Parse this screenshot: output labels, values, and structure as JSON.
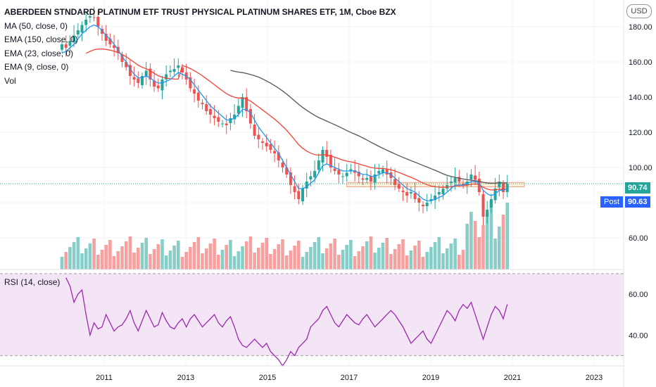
{
  "legend": {
    "title": "ABERDEEN STNDARD PLATINUM ETF TRUST PHYSICAL PLATINUM SHARES ETF, 1M, Cboe BZX",
    "ma50": "MA (50, close, 0)",
    "ema150": "EMA (150, close, 0)",
    "ema23": "EMA (23, close, 0)",
    "ema9": "EMA (9, close, 0)",
    "vol": "Vol"
  },
  "rsi_label": "RSI (14, close)",
  "currency_button": "USD",
  "last_price": "90.74",
  "post_label": "Post",
  "post_price": "90.63",
  "colors": {
    "up": "#26a69a",
    "down": "#ef5350",
    "ema9": "#2196f3",
    "ema23": "#f44336",
    "ma50": "#555555",
    "rsi_line": "#9c27b0",
    "rsi_band": "#f3e5f5"
  },
  "chart_data": [
    {
      "type": "candlestick",
      "x_ticks": [
        "2011",
        "2013",
        "2015",
        "2017",
        "2019",
        "2021",
        "2023"
      ],
      "y_ticks": [
        "60.00",
        "80.00",
        "100.00",
        "120.00",
        "140.00",
        "160.00",
        "180.00"
      ],
      "ylim": [
        42,
        192
      ],
      "xlim": [
        2009.9,
        2024.0
      ],
      "close_series": [
        170,
        168,
        172,
        175,
        178,
        181,
        184,
        186,
        185,
        180,
        176,
        172,
        170,
        168,
        165,
        160,
        157,
        152,
        150,
        148,
        152,
        155,
        150,
        146,
        145,
        150,
        153,
        155,
        156,
        158,
        154,
        150,
        145,
        142,
        138,
        136,
        132,
        130,
        128,
        126,
        125,
        124,
        128,
        130,
        135,
        140,
        132,
        125,
        118,
        116,
        114,
        112,
        110,
        108,
        104,
        100,
        96,
        90,
        86,
        82,
        88,
        92,
        95,
        98,
        104,
        110,
        106,
        100,
        98,
        96,
        95,
        97,
        99,
        97,
        95,
        93,
        94,
        92,
        96,
        98,
        99,
        96,
        94,
        90,
        88,
        86,
        84,
        86,
        82,
        80,
        78,
        80,
        82,
        84,
        86,
        88,
        90,
        92,
        94,
        92,
        90,
        92,
        96,
        93,
        86,
        72,
        76,
        82,
        88,
        92,
        86,
        90.74
      ],
      "ema9": [
        165,
        166,
        168,
        170,
        173,
        176,
        178,
        180,
        181,
        180,
        178,
        175,
        173,
        170,
        167,
        163,
        160,
        156,
        153,
        151,
        151,
        152,
        151,
        149,
        148,
        148,
        149,
        150,
        152,
        154,
        153,
        152,
        150,
        147,
        144,
        141,
        138,
        135,
        133,
        131,
        129,
        127,
        127,
        128,
        130,
        133,
        133,
        131,
        127,
        123,
        120,
        117,
        114,
        111,
        108,
        104,
        100,
        96,
        92,
        88,
        88,
        89,
        91,
        93,
        97,
        101,
        102,
        101,
        100,
        99,
        98,
        98,
        98,
        98,
        97,
        96,
        96,
        95,
        95,
        96,
        97,
        97,
        96,
        94,
        92,
        90,
        88,
        87,
        86,
        84,
        82,
        81,
        81,
        82,
        83,
        84,
        86,
        88,
        90,
        90,
        90,
        91,
        92,
        92,
        91,
        87,
        85,
        84,
        85,
        87,
        87,
        88
      ]
    },
    {
      "type": "line",
      "name": "RSI",
      "y_ticks": [
        "40.00",
        "60.00"
      ],
      "ylim": [
        25,
        72
      ],
      "band": [
        30,
        70
      ],
      "values": [
        68,
        64,
        56,
        60,
        62,
        50,
        40,
        46,
        43,
        44,
        50,
        46,
        42,
        44,
        45,
        48,
        52,
        46,
        42,
        47,
        52,
        48,
        44,
        45,
        51,
        47,
        44,
        43,
        46,
        48,
        44,
        48,
        50,
        47,
        44,
        46,
        48,
        50,
        46,
        44,
        47,
        49,
        44,
        38,
        35,
        34,
        36,
        38,
        36,
        34,
        36,
        32,
        30,
        28,
        25,
        28,
        32,
        30,
        34,
        36,
        38,
        44,
        46,
        48,
        52,
        54,
        50,
        46,
        44,
        47,
        50,
        48,
        46,
        45,
        48,
        50,
        47,
        44,
        46,
        48,
        50,
        52,
        50,
        47,
        44,
        40,
        36,
        38,
        40,
        42,
        38,
        36,
        40,
        44,
        48,
        52,
        50,
        47,
        52,
        55,
        53,
        56,
        50,
        44,
        38,
        44,
        50,
        54,
        52,
        48,
        55
      ]
    }
  ]
}
